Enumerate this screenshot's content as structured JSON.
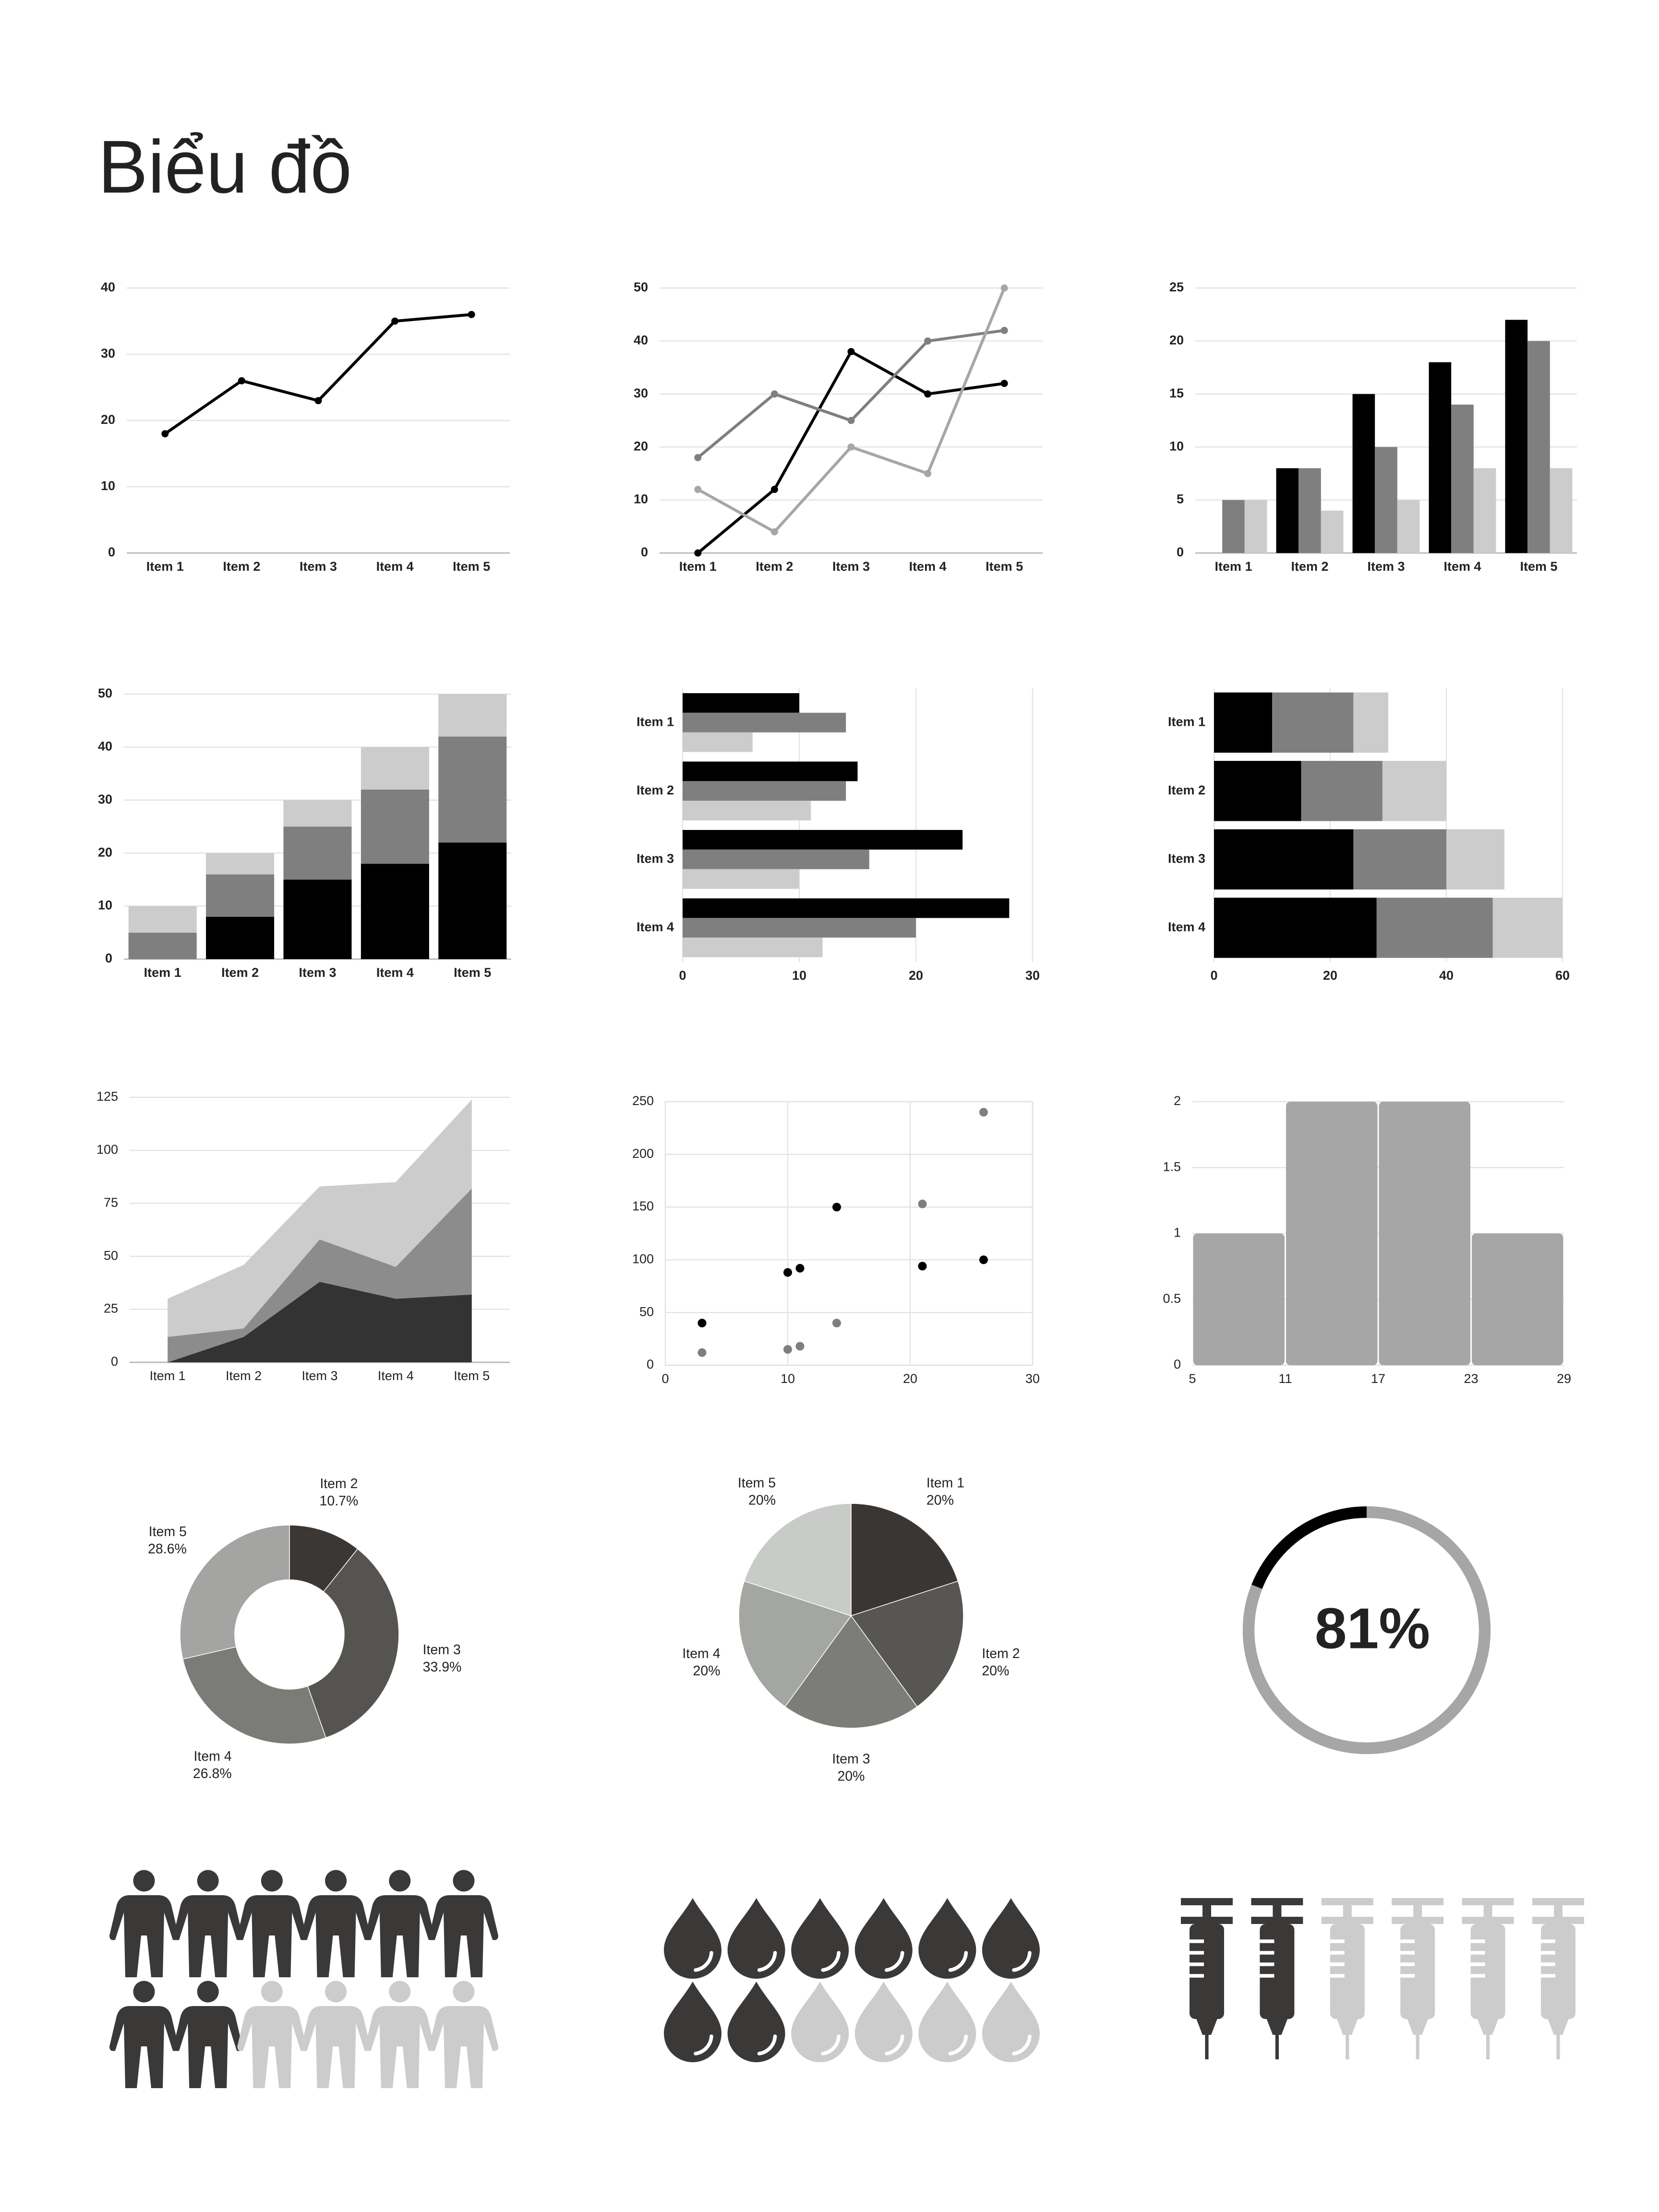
{
  "title": "Biểu đồ",
  "chart_data": [
    {
      "type": "line",
      "categories": [
        "Item 1",
        "Item 2",
        "Item 3",
        "Item 4",
        "Item 5"
      ],
      "series": [
        {
          "color": "#000000",
          "values": [
            18,
            26,
            23,
            35,
            36
          ]
        }
      ],
      "ylim": [
        0,
        40
      ],
      "yticks": [
        0,
        10,
        20,
        30,
        40
      ],
      "grid": true
    },
    {
      "type": "line",
      "categories": [
        "Item 1",
        "Item 2",
        "Item 3",
        "Item 4",
        "Item 5"
      ],
      "series": [
        {
          "color": "#000000",
          "values": [
            0,
            12,
            38,
            30,
            32
          ]
        },
        {
          "color": "#7f7f7f",
          "values": [
            18,
            30,
            25,
            40,
            42
          ]
        },
        {
          "color": "#a6a6a6",
          "values": [
            12,
            4,
            20,
            15,
            50
          ]
        }
      ],
      "ylim": [
        0,
        50
      ],
      "yticks": [
        0,
        10,
        20,
        30,
        40,
        50
      ],
      "grid": true
    },
    {
      "type": "bar",
      "categories": [
        "Item 1",
        "Item 2",
        "Item 3",
        "Item 4",
        "Item 5"
      ],
      "series": [
        {
          "color": "#000000",
          "values": [
            0,
            8,
            15,
            18,
            22
          ]
        },
        {
          "color": "#7f7f7f",
          "values": [
            5,
            8,
            10,
            14,
            20
          ]
        },
        {
          "color": "#cccccc",
          "values": [
            5,
            4,
            5,
            8,
            8
          ]
        }
      ],
      "ylim": [
        0,
        25
      ],
      "yticks": [
        0,
        5,
        10,
        15,
        20,
        25
      ],
      "grid": true
    },
    {
      "type": "bar",
      "stacked": true,
      "categories": [
        "Item 1",
        "Item 2",
        "Item 3",
        "Item 4",
        "Item 5"
      ],
      "series": [
        {
          "color": "#000000",
          "values": [
            0,
            8,
            15,
            18,
            22
          ]
        },
        {
          "color": "#7f7f7f",
          "values": [
            5,
            8,
            10,
            14,
            20
          ]
        },
        {
          "color": "#cccccc",
          "values": [
            5,
            4,
            5,
            8,
            8
          ]
        }
      ],
      "ylim": [
        0,
        50
      ],
      "yticks": [
        0,
        10,
        20,
        30,
        40,
        50
      ],
      "grid": true
    },
    {
      "type": "bar",
      "orientation": "horizontal",
      "categories": [
        "Item 1",
        "Item 2",
        "Item 3",
        "Item 4"
      ],
      "series": [
        {
          "color": "#000000",
          "values": [
            10,
            15,
            24,
            28
          ]
        },
        {
          "color": "#7f7f7f",
          "values": [
            14,
            14,
            16,
            20
          ]
        },
        {
          "color": "#cccccc",
          "values": [
            6,
            11,
            10,
            12
          ]
        }
      ],
      "xlim": [
        0,
        30
      ],
      "xticks": [
        0,
        10,
        20,
        30
      ],
      "grid": true
    },
    {
      "type": "bar",
      "orientation": "horizontal",
      "stacked": true,
      "categories": [
        "Item 1",
        "Item 2",
        "Item 3",
        "Item 4"
      ],
      "series": [
        {
          "color": "#000000",
          "values": [
            10,
            15,
            24,
            28
          ]
        },
        {
          "color": "#7f7f7f",
          "values": [
            14,
            14,
            16,
            20
          ]
        },
        {
          "color": "#cccccc",
          "values": [
            6,
            11,
            10,
            12
          ]
        }
      ],
      "xlim": [
        0,
        60
      ],
      "xticks": [
        0,
        20,
        40,
        60
      ],
      "grid": true
    },
    {
      "type": "area",
      "stacked": true,
      "categories": [
        "Item 1",
        "Item 2",
        "Item 3",
        "Item 4",
        "Item 5"
      ],
      "series": [
        {
          "color": "#333333",
          "values": [
            0,
            12,
            38,
            30,
            32
          ]
        },
        {
          "color": "#8c8c8c",
          "values": [
            12,
            4,
            20,
            15,
            50
          ]
        },
        {
          "color": "#cccccc",
          "values": [
            18,
            30,
            25,
            40,
            42
          ]
        }
      ],
      "ylim": [
        0,
        125
      ],
      "yticks": [
        0,
        25,
        50,
        75,
        100,
        125
      ],
      "grid": true
    },
    {
      "type": "scatter",
      "series": [
        {
          "color": "#000000",
          "x": [
            3,
            10,
            11,
            14,
            21,
            26
          ],
          "values": [
            40,
            88,
            92,
            150,
            94,
            100
          ]
        },
        {
          "color": "#7f7f7f",
          "x": [
            3,
            10,
            11,
            14,
            21,
            26
          ],
          "values": [
            12,
            15,
            18,
            40,
            153,
            240
          ]
        }
      ],
      "xlim": [
        0,
        30
      ],
      "xticks": [
        0,
        10,
        20,
        30
      ],
      "ylim": [
        0,
        250
      ],
      "yticks": [
        0,
        50,
        100,
        150,
        200,
        250
      ],
      "grid": true
    },
    {
      "type": "histogram",
      "bins": [
        5,
        11,
        17,
        23,
        29
      ],
      "values": [
        1,
        2,
        2,
        1
      ],
      "color": "#a6a6a6",
      "xlim": [
        5,
        29
      ],
      "xticks": [
        5,
        11,
        17,
        23,
        29
      ],
      "ylim": [
        0,
        2
      ],
      "yticks": [
        0,
        0.5,
        1,
        1.5,
        2
      ],
      "grid": true
    },
    {
      "type": "donut",
      "categories": [
        "Item 2",
        "Item 3",
        "Item 4",
        "Item 5"
      ],
      "values": [
        10.7,
        33.9,
        26.8,
        28.6
      ],
      "value_labels": [
        "10.7%",
        "33.9%",
        "26.8%",
        "28.6%"
      ],
      "colors": [
        "#3a3734",
        "#555450",
        "#7b7b78",
        "#a4a5a2"
      ]
    },
    {
      "type": "pie",
      "categories": [
        "Item 1",
        "Item 2",
        "Item 3",
        "Item 4",
        "Item 5"
      ],
      "values": [
        20,
        20,
        20,
        20,
        20
      ],
      "value_labels": [
        "20%",
        "20%",
        "20%",
        "20%",
        "20%"
      ],
      "colors": [
        "#3a3633",
        "#575652",
        "#7c7d79",
        "#a4a6a2",
        "#c8cbc8"
      ]
    },
    {
      "type": "progress",
      "value": 81,
      "value_label": "81%",
      "color": "#a6a6a6",
      "track_color": "#000000"
    },
    {
      "type": "pictograph",
      "total": 12,
      "value": 8,
      "color": "#3b3838",
      "empty_color": "#cccccc"
    },
    {
      "type": "pictograph",
      "total": 12,
      "value": 8,
      "color": "#3b3838",
      "empty_color": "#cccccc"
    },
    {
      "type": "pictograph",
      "total": 6,
      "value": 2,
      "color": "#3b3838",
      "empty_color": "#cccccc"
    }
  ]
}
